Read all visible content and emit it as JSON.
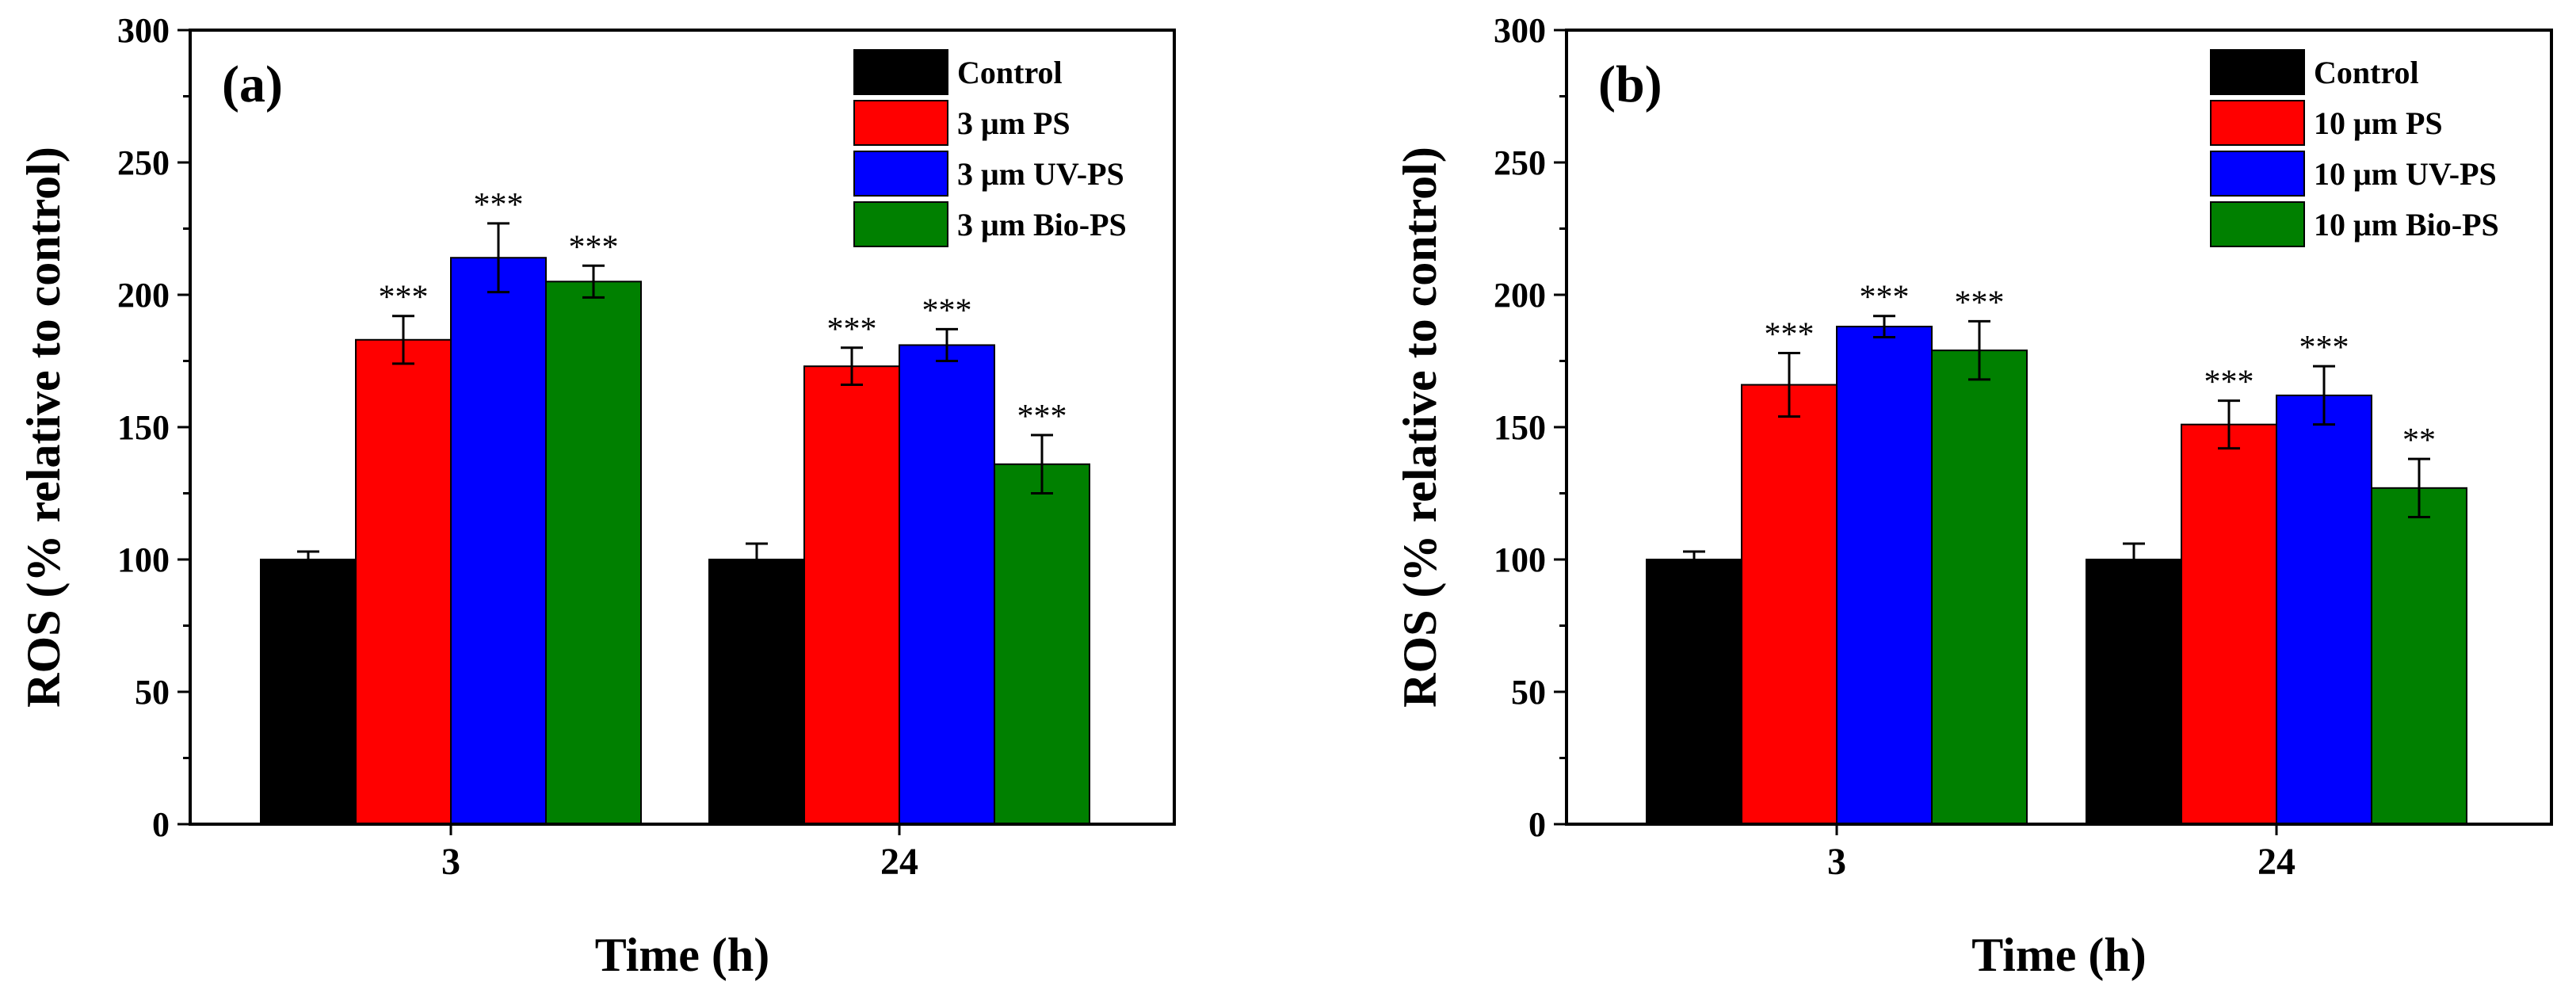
{
  "chart_data": [
    {
      "type": "bar",
      "panel_label": "(a)",
      "title": "",
      "xlabel": "Time (h)",
      "ylabel": "ROS (% relative to control)",
      "ylim": [
        0,
        300
      ],
      "yticks": [
        0,
        50,
        100,
        150,
        200,
        250,
        300
      ],
      "categories": [
        "3",
        "24"
      ],
      "legend_position": "top-right",
      "series": [
        {
          "name": "Control",
          "color": "#000000",
          "values": [
            100,
            100
          ],
          "errors": [
            3,
            6
          ],
          "sig": [
            "",
            ""
          ]
        },
        {
          "name": "3 μm PS",
          "color": "#ff0000",
          "values": [
            183,
            173
          ],
          "errors": [
            9,
            7
          ],
          "sig": [
            "***",
            "***"
          ]
        },
        {
          "name": "3 μm UV-PS",
          "color": "#0000ff",
          "values": [
            214,
            181
          ],
          "errors": [
            13,
            6
          ],
          "sig": [
            "***",
            "***"
          ]
        },
        {
          "name": "3 μm Bio-PS",
          "color": "#008000",
          "values": [
            205,
            136
          ],
          "errors": [
            6,
            11
          ],
          "sig": [
            "***",
            "***"
          ]
        }
      ]
    },
    {
      "type": "bar",
      "panel_label": "(b)",
      "title": "",
      "xlabel": "Time (h)",
      "ylabel": "ROS (% relative to control)",
      "ylim": [
        0,
        300
      ],
      "yticks": [
        0,
        50,
        100,
        150,
        200,
        250,
        300
      ],
      "categories": [
        "3",
        "24"
      ],
      "legend_position": "top-right",
      "series": [
        {
          "name": "Control",
          "color": "#000000",
          "values": [
            100,
            100
          ],
          "errors": [
            3,
            6
          ],
          "sig": [
            "",
            ""
          ]
        },
        {
          "name": "10 μm PS",
          "color": "#ff0000",
          "values": [
            166,
            151
          ],
          "errors": [
            12,
            9
          ],
          "sig": [
            "***",
            "***"
          ]
        },
        {
          "name": "10 μm UV-PS",
          "color": "#0000ff",
          "values": [
            188,
            162
          ],
          "errors": [
            4,
            11
          ],
          "sig": [
            "***",
            "***"
          ]
        },
        {
          "name": "10 μm Bio-PS",
          "color": "#008000",
          "values": [
            179,
            127
          ],
          "errors": [
            11,
            11
          ],
          "sig": [
            "***",
            "**"
          ]
        }
      ]
    }
  ]
}
